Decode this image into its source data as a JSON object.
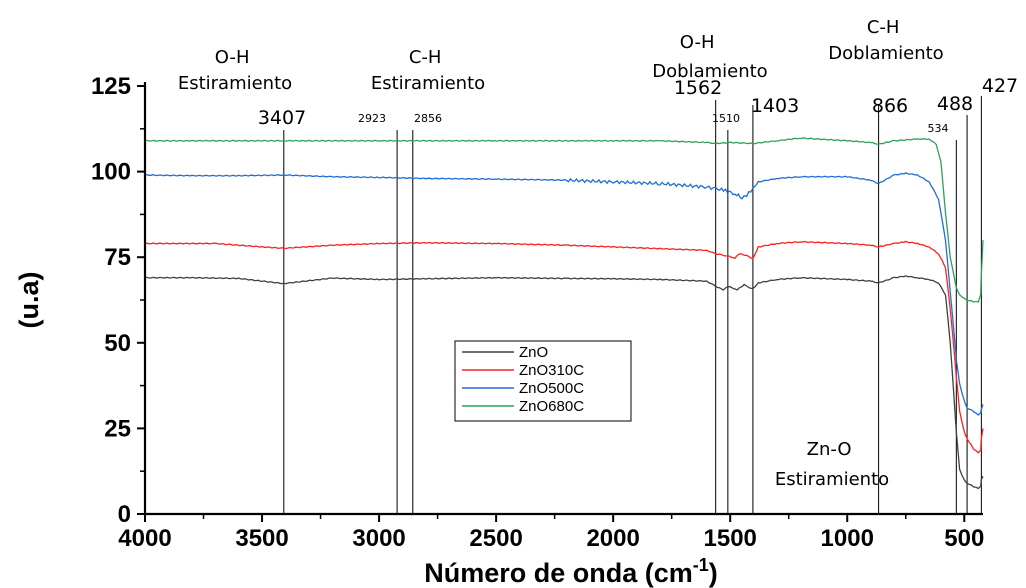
{
  "chart_data": {
    "type": "line",
    "xlabel": "Número de onda (cm",
    "xlabel_sup": "-1",
    "xlabel_close": ")",
    "ylabel": "(u.a)",
    "xlim": [
      4000,
      420
    ],
    "ylim": [
      0,
      125
    ],
    "x_reversed": true,
    "xticks": [
      4000,
      3500,
      3000,
      2500,
      2000,
      1500,
      1000,
      500
    ],
    "yticks": [
      0,
      25,
      50,
      75,
      100,
      125
    ],
    "grid": false,
    "legend_position": "center-left",
    "series": [
      {
        "name": "ZnO",
        "color": "#404040",
        "points": [
          [
            4000,
            69
          ],
          [
            3800,
            69
          ],
          [
            3600,
            68.8
          ],
          [
            3407,
            67.3
          ],
          [
            3200,
            68.9
          ],
          [
            3000,
            68.5
          ],
          [
            2800,
            68.7
          ],
          [
            2500,
            69
          ],
          [
            2200,
            68.8
          ],
          [
            2000,
            68.7
          ],
          [
            1800,
            68.5
          ],
          [
            1600,
            68
          ],
          [
            1562,
            66.5
          ],
          [
            1530,
            65.5
          ],
          [
            1510,
            66.5
          ],
          [
            1470,
            65.5
          ],
          [
            1440,
            67
          ],
          [
            1420,
            66
          ],
          [
            1403,
            65.8
          ],
          [
            1380,
            67.5
          ],
          [
            1300,
            68.5
          ],
          [
            1200,
            69
          ],
          [
            1000,
            68.5
          ],
          [
            900,
            68
          ],
          [
            866,
            67.5
          ],
          [
            800,
            69
          ],
          [
            750,
            69.5
          ],
          [
            700,
            69
          ],
          [
            650,
            68.5
          ],
          [
            610,
            67.5
          ],
          [
            580,
            64
          ],
          [
            560,
            50
          ],
          [
            540,
            30
          ],
          [
            534,
            24
          ],
          [
            520,
            13
          ],
          [
            500,
            10
          ],
          [
            488,
            9
          ],
          [
            460,
            8
          ],
          [
            440,
            7.5
          ],
          [
            430,
            8
          ],
          [
            427,
            10
          ],
          [
            420,
            11
          ]
        ]
      },
      {
        "name": "ZnO310C",
        "color": "#ff2020",
        "points": [
          [
            4000,
            79
          ],
          [
            3700,
            79
          ],
          [
            3500,
            78
          ],
          [
            3407,
            77.6
          ],
          [
            3200,
            78.5
          ],
          [
            3000,
            79
          ],
          [
            2800,
            79.2
          ],
          [
            2500,
            79
          ],
          [
            2200,
            78.5
          ],
          [
            2000,
            78
          ],
          [
            1800,
            77.5
          ],
          [
            1600,
            77
          ],
          [
            1562,
            76
          ],
          [
            1520,
            75.5
          ],
          [
            1480,
            74.8
          ],
          [
            1460,
            76
          ],
          [
            1430,
            75.5
          ],
          [
            1403,
            74.5
          ],
          [
            1380,
            78
          ],
          [
            1300,
            79
          ],
          [
            1200,
            79.5
          ],
          [
            1000,
            79
          ],
          [
            900,
            78.5
          ],
          [
            866,
            78
          ],
          [
            800,
            79
          ],
          [
            750,
            79.5
          ],
          [
            700,
            79
          ],
          [
            650,
            78
          ],
          [
            610,
            76
          ],
          [
            580,
            72
          ],
          [
            560,
            60
          ],
          [
            540,
            45
          ],
          [
            534,
            40
          ],
          [
            520,
            30
          ],
          [
            500,
            24
          ],
          [
            488,
            22
          ],
          [
            460,
            19
          ],
          [
            440,
            18
          ],
          [
            430,
            18.5
          ],
          [
            427,
            22
          ],
          [
            420,
            25
          ]
        ]
      },
      {
        "name": "ZnO500C",
        "color": "#1f6fd6",
        "points": [
          [
            4000,
            99
          ],
          [
            3800,
            98.8
          ],
          [
            3600,
            98.8
          ],
          [
            3407,
            99
          ],
          [
            3200,
            98.5
          ],
          [
            3000,
            98.3
          ],
          [
            2800,
            98
          ],
          [
            2500,
            97.8
          ],
          [
            2200,
            97.5
          ],
          [
            2000,
            97
          ],
          [
            1800,
            96.5
          ],
          [
            1600,
            95.5
          ],
          [
            1562,
            95
          ],
          [
            1520,
            94.5
          ],
          [
            1480,
            93.5
          ],
          [
            1450,
            92.5
          ],
          [
            1430,
            93
          ],
          [
            1403,
            95
          ],
          [
            1380,
            97
          ],
          [
            1300,
            98
          ],
          [
            1200,
            98.5
          ],
          [
            1000,
            98.5
          ],
          [
            900,
            97.5
          ],
          [
            866,
            96.5
          ],
          [
            800,
            99
          ],
          [
            750,
            99.5
          ],
          [
            700,
            99
          ],
          [
            650,
            97
          ],
          [
            610,
            92
          ],
          [
            580,
            80
          ],
          [
            560,
            65
          ],
          [
            540,
            50
          ],
          [
            534,
            45
          ],
          [
            520,
            38
          ],
          [
            500,
            33
          ],
          [
            488,
            31
          ],
          [
            460,
            30
          ],
          [
            440,
            29
          ],
          [
            430,
            29.5
          ],
          [
            427,
            30.5
          ],
          [
            420,
            32
          ]
        ]
      },
      {
        "name": "ZnO680C",
        "color": "#2fa05a",
        "points": [
          [
            4000,
            109
          ],
          [
            3800,
            109
          ],
          [
            3600,
            109
          ],
          [
            3407,
            109
          ],
          [
            3000,
            109
          ],
          [
            2500,
            109
          ],
          [
            2000,
            109
          ],
          [
            1800,
            109
          ],
          [
            1600,
            108.5
          ],
          [
            1562,
            108.2
          ],
          [
            1500,
            108.5
          ],
          [
            1403,
            108.2
          ],
          [
            1300,
            109
          ],
          [
            1200,
            109.8
          ],
          [
            1000,
            109
          ],
          [
            900,
            108.5
          ],
          [
            866,
            108
          ],
          [
            800,
            109
          ],
          [
            700,
            109.5
          ],
          [
            650,
            109.5
          ],
          [
            620,
            108
          ],
          [
            600,
            103
          ],
          [
            580,
            88
          ],
          [
            560,
            75
          ],
          [
            540,
            68
          ],
          [
            534,
            66
          ],
          [
            520,
            64
          ],
          [
            500,
            63
          ],
          [
            488,
            62.5
          ],
          [
            460,
            62
          ],
          [
            440,
            62
          ],
          [
            430,
            64
          ],
          [
            427,
            70
          ],
          [
            420,
            80
          ]
        ]
      }
    ],
    "peak_lines": [
      3407,
      2923,
      2856,
      1562,
      1510,
      1403,
      866,
      534,
      488,
      427
    ],
    "peak_labels": [
      {
        "text": "3407",
        "x": 3407,
        "size": "big"
      },
      {
        "text": "2923",
        "x": 2923,
        "size": "small"
      },
      {
        "text": "2856",
        "x": 2856,
        "size": "small"
      },
      {
        "text": "1562",
        "x": 1562,
        "size": "big"
      },
      {
        "text": "1510",
        "x": 1510,
        "size": "small"
      },
      {
        "text": "1403",
        "x": 1403,
        "size": "big"
      },
      {
        "text": "866",
        "x": 866,
        "size": "big"
      },
      {
        "text": "534",
        "x": 534,
        "size": "small"
      },
      {
        "text": "488",
        "x": 488,
        "size": "big"
      },
      {
        "text": "427",
        "x": 427,
        "size": "big"
      }
    ],
    "annotations": [
      {
        "lines": [
          "O-H",
          "Estiramiento"
        ]
      },
      {
        "lines": [
          "C-H",
          "Estiramiento"
        ]
      },
      {
        "lines": [
          "O-H",
          "Doblamiento"
        ]
      },
      {
        "lines": [
          "C-H",
          "Doblamiento"
        ]
      },
      {
        "lines": [
          "Zn-O",
          "Estiramiento"
        ]
      }
    ]
  }
}
